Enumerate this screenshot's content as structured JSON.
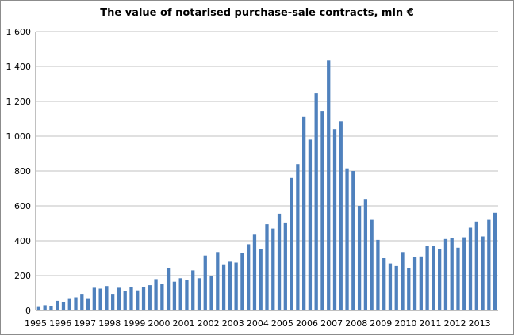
{
  "chart_data": {
    "type": "bar",
    "title": "The value of notarised purchase-sale contracts, mln €",
    "xlabel": "",
    "ylabel": "",
    "ylim": [
      0,
      1600
    ],
    "y_ticks": [
      0,
      200,
      400,
      600,
      800,
      1000,
      1200,
      1400,
      1600
    ],
    "y_tick_labels": [
      "0",
      "200",
      "400",
      "600",
      "800",
      "1 000",
      "1 200",
      "1 400",
      "1 600"
    ],
    "grid": true,
    "legend": "none",
    "bar_color": "#4f81bd",
    "grid_color": "#c0c0c0",
    "x_tick_labels": [
      "1995",
      "1996",
      "1997",
      "1998",
      "1999",
      "2000",
      "2001",
      "2002",
      "2003",
      "2004",
      "2005",
      "2006",
      "2007",
      "2008",
      "2009",
      "2010",
      "2011",
      "2012",
      "2013"
    ],
    "x_tick_start_index": [
      0,
      4,
      8,
      12,
      16,
      20,
      24,
      28,
      32,
      36,
      40,
      44,
      48,
      52,
      56,
      60,
      64,
      68,
      72
    ],
    "values": [
      20,
      30,
      25,
      55,
      50,
      70,
      75,
      95,
      70,
      130,
      125,
      140,
      95,
      130,
      110,
      135,
      115,
      135,
      145,
      180,
      150,
      245,
      165,
      185,
      175,
      230,
      185,
      315,
      200,
      335,
      265,
      280,
      275,
      330,
      380,
      435,
      350,
      495,
      470,
      555,
      505,
      760,
      840,
      1110,
      980,
      1245,
      1145,
      1435,
      1040,
      1085,
      815,
      800,
      600,
      640,
      520,
      405,
      300,
      270,
      255,
      335,
      245,
      305,
      310,
      370,
      370,
      350,
      410,
      415,
      360,
      420,
      475,
      510,
      425,
      520,
      560
    ]
  }
}
